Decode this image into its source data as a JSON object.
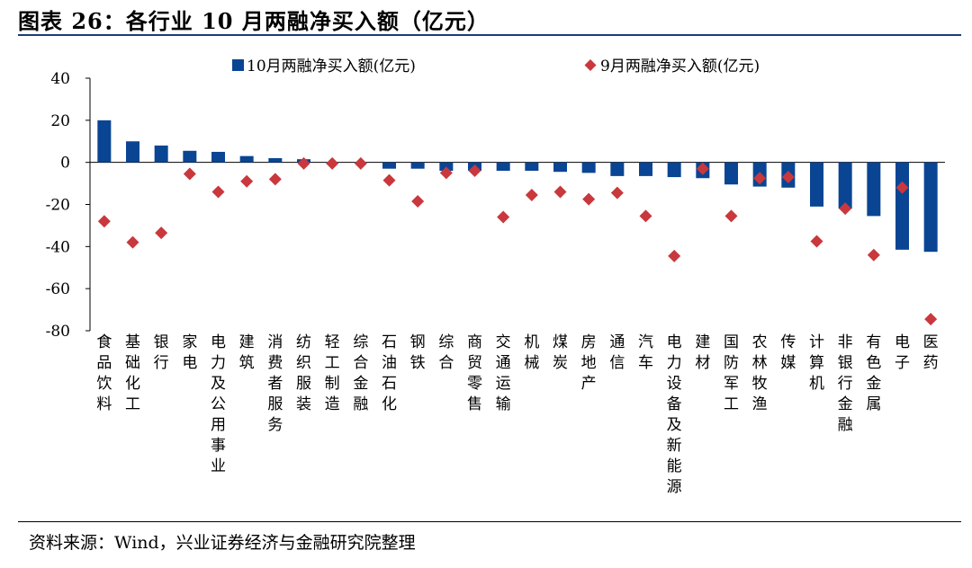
{
  "header": {
    "title": "图表 26：各行业 10 月两融净买入额（亿元）"
  },
  "footer": {
    "source": "资料来源：Wind，兴业证券经济与金融研究院整理"
  },
  "colors": {
    "bar": "#0a4594",
    "marker": "#c9383c",
    "axis": "#000000",
    "header_rule": "#1a3a78"
  },
  "chart_data": {
    "type": "bar",
    "title": "各行业 10 月两融净买入额（亿元）",
    "xlabel": "",
    "ylabel": "",
    "ylim": [
      -80,
      40
    ],
    "yticks": [
      40,
      20,
      0,
      -20,
      -40,
      -60,
      -80
    ],
    "legend_position": "top",
    "categories": [
      "食品饮料",
      "基础化工",
      "银行",
      "家电",
      "电力及公用事业",
      "建筑",
      "消费者服务",
      "纺织服装",
      "轻工制造",
      "综合金融",
      "石油石化",
      "钢铁",
      "综合",
      "商贸零售",
      "交通运输",
      "机械",
      "煤炭",
      "房地产",
      "通信",
      "汽车",
      "电力设备及新能源",
      "建材",
      "国防军工",
      "农林牧渔",
      "传媒",
      "计算机",
      "非银行金融",
      "有色金属",
      "电子",
      "医药"
    ],
    "series": [
      {
        "name": "10月两融净买入额(亿元)",
        "type": "bar",
        "values": [
          20,
          10,
          8,
          5.5,
          5,
          3,
          2,
          1.5,
          0,
          0,
          -3,
          -3,
          -4,
          -4,
          -4,
          -4,
          -4.5,
          -5,
          -6.5,
          -6.5,
          -7,
          -7.5,
          -10.5,
          -11.5,
          -12,
          -21,
          -22,
          -25.5,
          -41.5,
          -42.5
        ]
      },
      {
        "name": "9月两融净买入额(亿元)",
        "type": "scatter",
        "values": [
          -28,
          -38,
          -33.5,
          -5.5,
          -14,
          -9,
          -8,
          -0.5,
          -0.5,
          -0.5,
          -8.5,
          -18.5,
          -5,
          -4,
          -26,
          -15.5,
          -14,
          -17.5,
          -14.5,
          -25.5,
          -44.5,
          -3,
          -25.5,
          -7.5,
          -7,
          -37.5,
          -22,
          -44,
          -12,
          -74.5
        ]
      }
    ]
  }
}
